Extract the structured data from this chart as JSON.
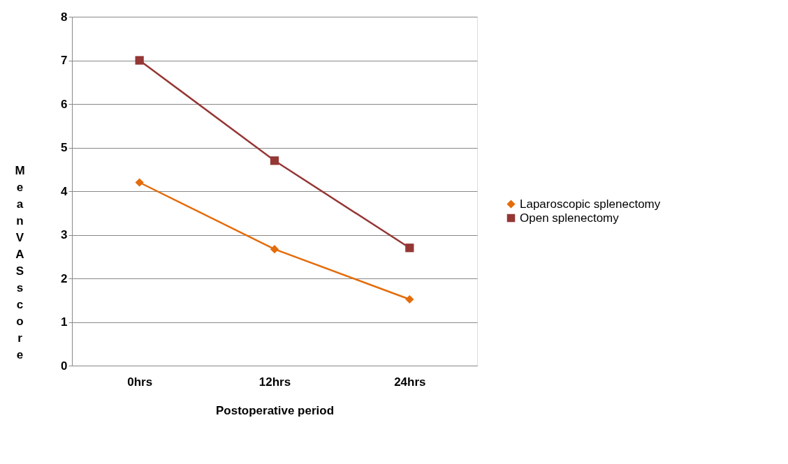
{
  "chart_data": {
    "type": "line",
    "xlabel": "Postoperative period",
    "ylabel": "Mean VAS score",
    "categories": [
      "0hrs",
      "12hrs",
      "24hrs"
    ],
    "series": [
      {
        "name": "Laparoscopic splenectomy",
        "color": "#e46c0a",
        "marker": "diamond",
        "values": [
          4.2,
          2.67,
          1.52
        ]
      },
      {
        "name": "Open splenectomy",
        "color": "#953735",
        "marker": "square",
        "values": [
          7.0,
          4.7,
          2.7
        ]
      }
    ],
    "ylim": [
      0,
      8
    ],
    "yticks": [
      0,
      1,
      2,
      3,
      4,
      5,
      6,
      7,
      8
    ],
    "grid": "y",
    "legend": "right",
    "line_style": "solid"
  }
}
